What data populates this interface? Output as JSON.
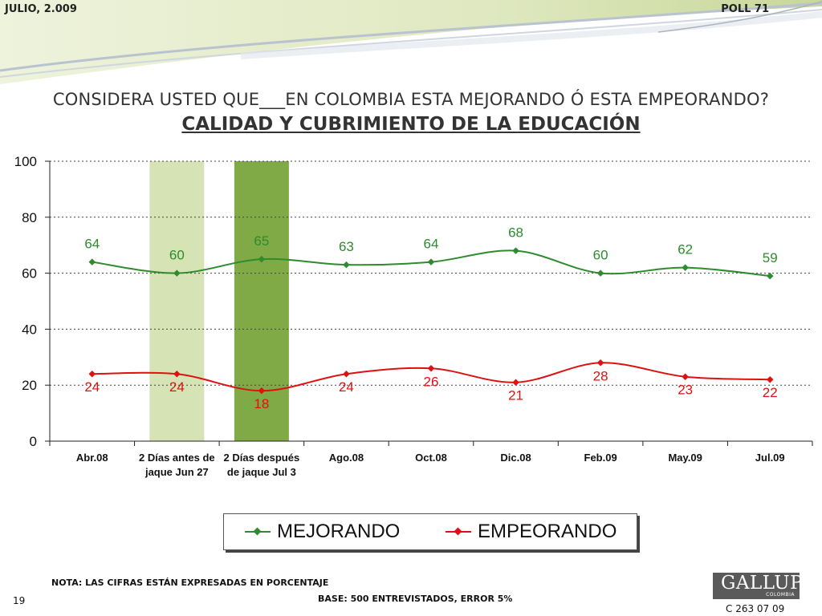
{
  "header": {
    "date": "JULIO, 2.009",
    "poll": "POLL 71"
  },
  "question": {
    "main": "CONSIDERA USTED QUE___EN COLOMBIA ESTA MEJORANDO Ó ESTA EMPEORANDO?",
    "topic": "CALIDAD Y CUBRIMIENTO DE LA EDUCACIÓN"
  },
  "colors": {
    "mejorando": "#2e8b2e",
    "empeorando": "#dd1111",
    "highlight_light": "#d6e3b4",
    "highlight_dark": "#7faa45"
  },
  "chart_data": {
    "type": "line",
    "categories": [
      [
        "Abr.08"
      ],
      [
        "2 Días antes de",
        "jaque Jun 27"
      ],
      [
        "2 Días después",
        "de jaque Jul 3"
      ],
      [
        "Ago.08"
      ],
      [
        "Oct.08"
      ],
      [
        "Dic.08"
      ],
      [
        "Feb.09"
      ],
      [
        "May.09"
      ],
      [
        "Jul.09"
      ]
    ],
    "series": [
      {
        "name": "MEJORANDO",
        "color": "#2e8b2e",
        "values": [
          64,
          60,
          65,
          63,
          64,
          68,
          60,
          62,
          59
        ]
      },
      {
        "name": "EMPEORANDO",
        "color": "#dd1111",
        "values": [
          24,
          24,
          18,
          24,
          26,
          21,
          28,
          23,
          22
        ]
      }
    ],
    "ylim": [
      0,
      100
    ],
    "yticks": [
      0,
      20,
      40,
      60,
      80,
      100
    ],
    "highlighted_categories": [
      1,
      2
    ],
    "grid": true,
    "legend_position": "bottom"
  },
  "legend": {
    "mejorando": "MEJORANDO",
    "empeorando": "EMPEORANDO"
  },
  "footer": {
    "note": "NOTA: LAS CIFRAS ESTÁN EXPRESADAS EN PORCENTAJE",
    "base": "BASE: 500 ENTREVISTADOS, ERROR 5%",
    "page": "19",
    "code": "C 263 07 09",
    "logo_name": "GALLUP",
    "logo_sub": "COLOMBIA"
  }
}
